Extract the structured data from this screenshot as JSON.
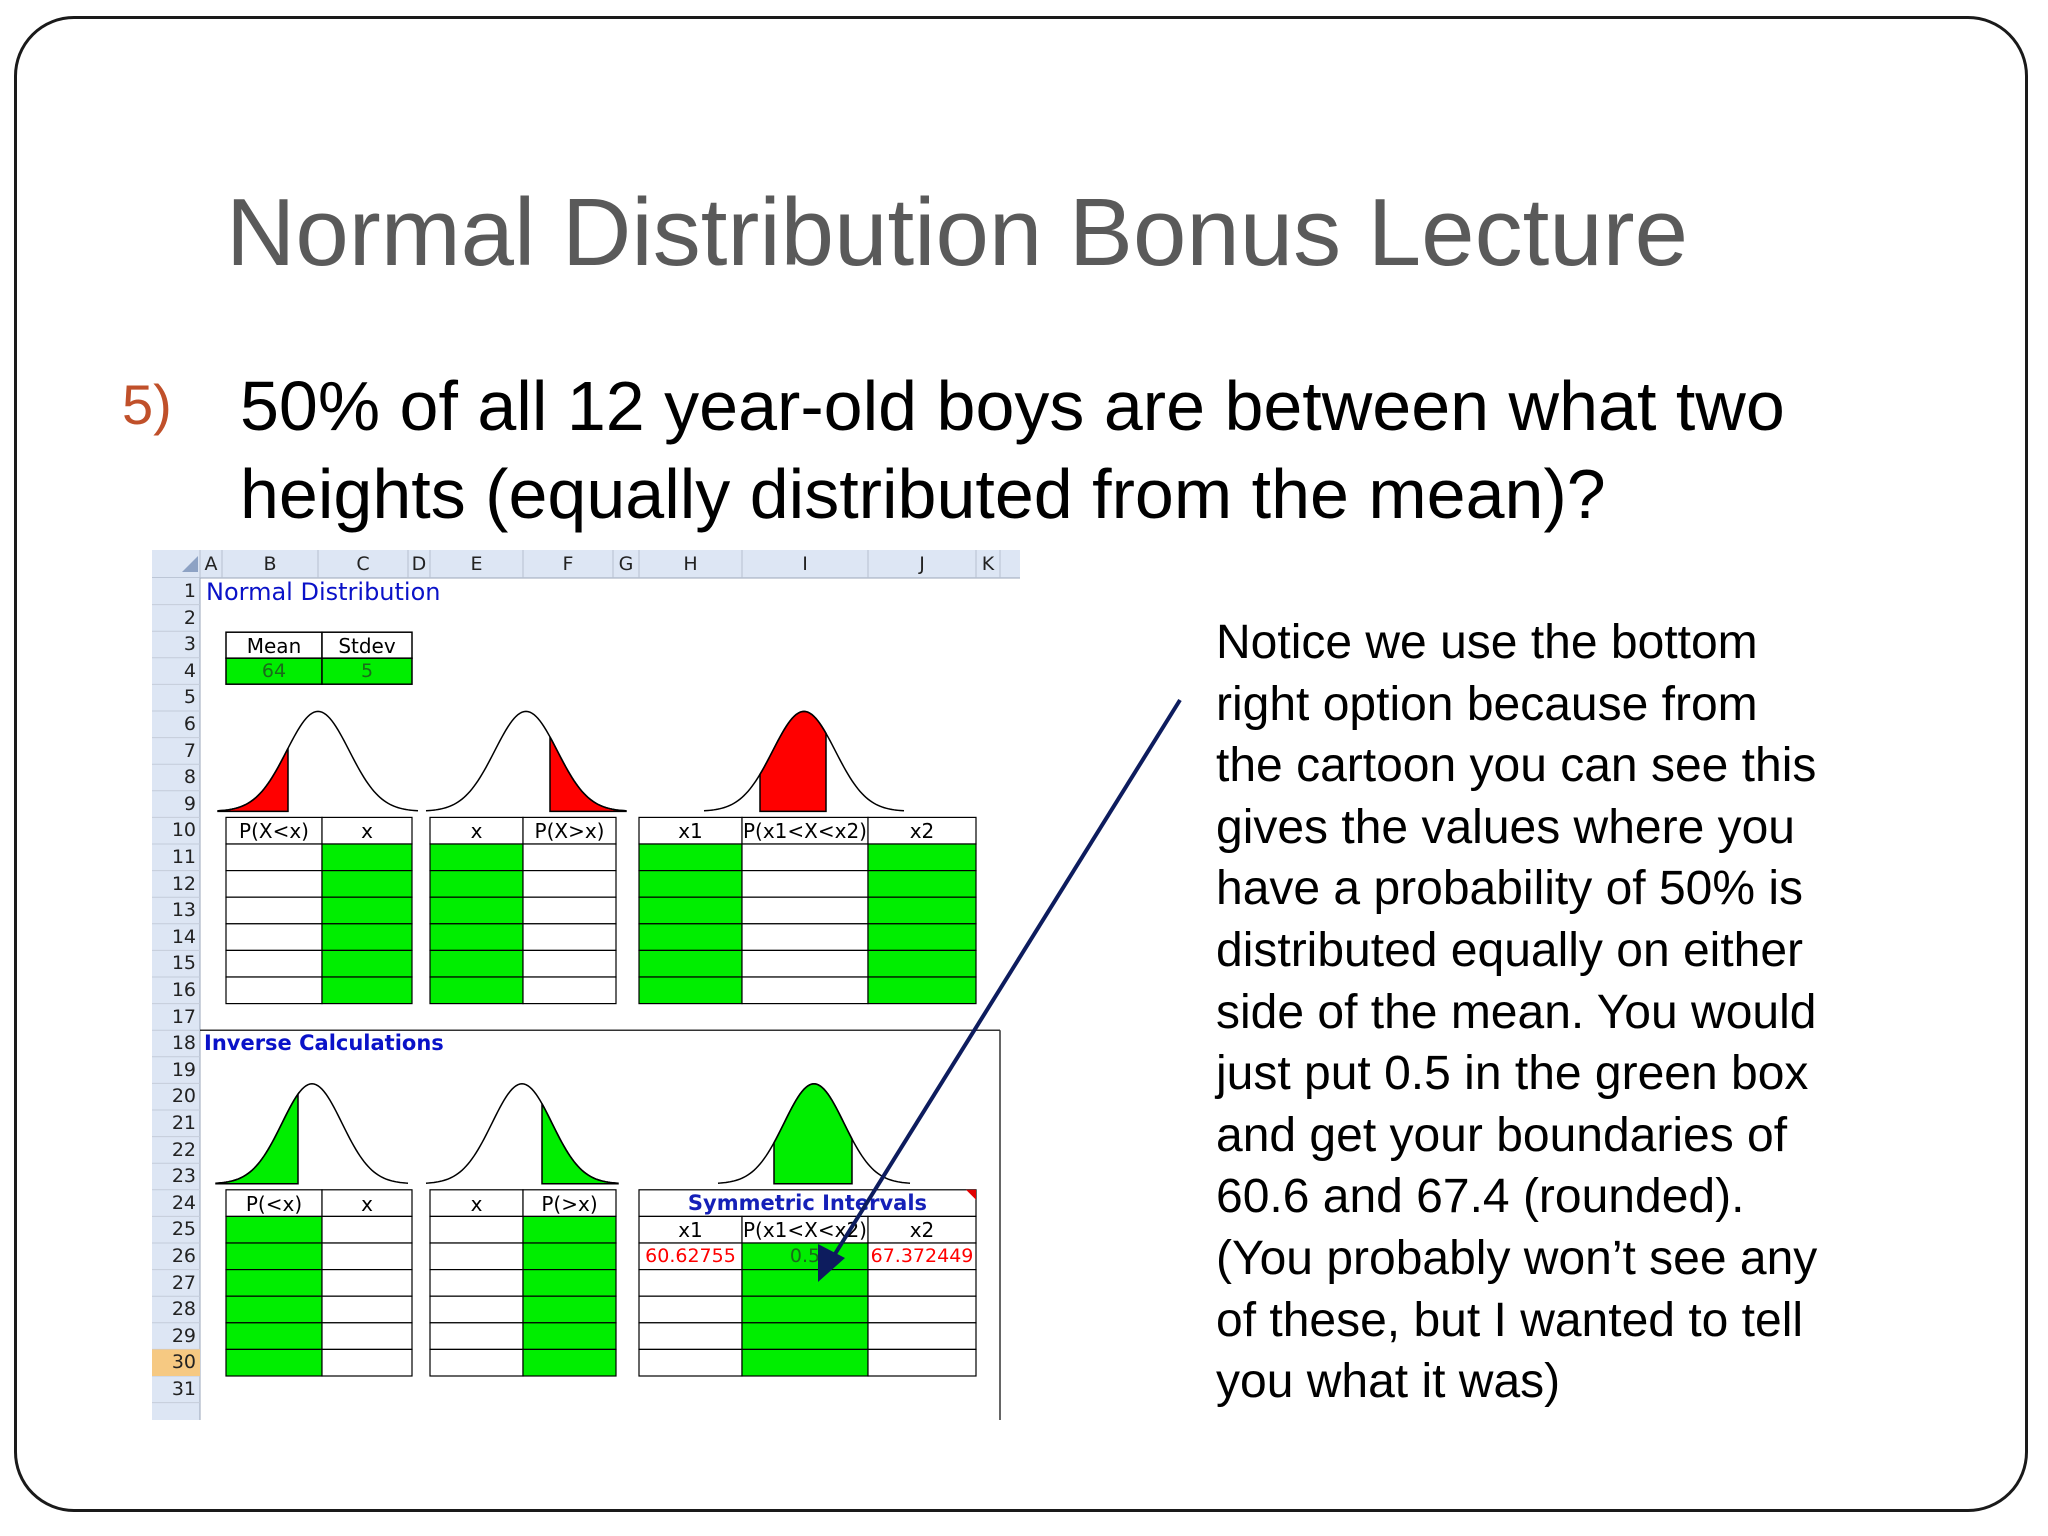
{
  "slide": {
    "title": "Normal Distribution Bonus Lecture",
    "question_number": "5)",
    "question_text": "50% of all 12 year-old boys are between what two heights (equally distributed from the mean)?",
    "notice_lines": [
      "Notice we use the bottom",
      "right option because from",
      "the cartoon you can see this",
      "gives the values where you",
      "have a probability of 50% is",
      "distributed equally on either",
      "side of the mean. You would",
      "just put 0.5 in the green box",
      "and get your boundaries of",
      "60.6 and 67.4 (rounded).",
      "(You probably won’t see any",
      "of these, but I wanted to tell",
      "you what it was)"
    ]
  },
  "spreadsheet": {
    "columns": [
      "A",
      "B",
      "C",
      "D",
      "E",
      "F",
      "G",
      "H",
      "I",
      "J",
      "K"
    ],
    "rows": [
      "1",
      "2",
      "3",
      "4",
      "5",
      "6",
      "7",
      "8",
      "9",
      "10",
      "11",
      "12",
      "13",
      "14",
      "15",
      "16",
      "17",
      "18",
      "19",
      "20",
      "21",
      "22",
      "23",
      "24",
      "25",
      "26",
      "27",
      "28",
      "29",
      "30",
      "31"
    ],
    "active_row": "30",
    "heading_normal": "Normal Distribution",
    "heading_inverse": "Inverse Calculations",
    "params": {
      "mean_label": "Mean",
      "stdev_label": "Stdev",
      "mean": "64",
      "stdev": "5"
    },
    "forward": {
      "left": {
        "h1": "P(X<x)",
        "h2": "x"
      },
      "mid": {
        "h1": "x",
        "h2": "P(X>x)"
      },
      "right": {
        "h1": "x1",
        "h2": "P(x1<X<x2)",
        "h3": "x2"
      }
    },
    "inverse": {
      "left": {
        "h1": "P(<x)",
        "h2": "x"
      },
      "mid": {
        "h1": "x",
        "h2": "P(>x)"
      },
      "right": {
        "title": "Symmetric Intervals",
        "h1": "x1",
        "h2": "P(x1<X<x2)",
        "h3": "x2",
        "x1": "60.62755",
        "p": "0.5",
        "x2": "67.372449"
      }
    },
    "colors": {
      "green": "#00ee00",
      "red": "#ff0000",
      "header_bg": "#dde6f4",
      "arrow": "#0d1c5e",
      "value_red": "#ff0000"
    }
  }
}
